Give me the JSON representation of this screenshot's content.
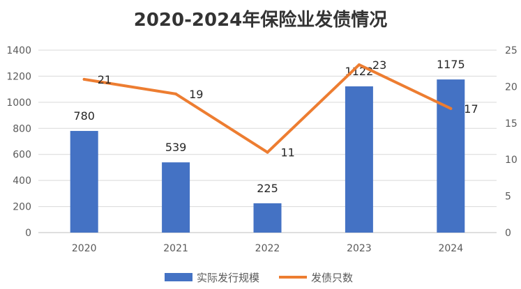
{
  "chart_data": {
    "type": "bar",
    "title": "2020-2024年保险业发债情况",
    "categories": [
      "2020",
      "2021",
      "2022",
      "2023",
      "2024"
    ],
    "series": [
      {
        "name": "实际发行规模",
        "type": "bar",
        "axis": "left",
        "values": [
          780,
          539,
          225,
          1122,
          1175
        ],
        "color": "#4472C4"
      },
      {
        "name": "发债只数",
        "type": "line",
        "axis": "right",
        "values": [
          21,
          19,
          11,
          23,
          17
        ],
        "color": "#ED7D31"
      }
    ],
    "y_left": {
      "min": 0,
      "max": 1400,
      "step": 200,
      "ticks": [
        "0",
        "200",
        "400",
        "600",
        "800",
        "1000",
        "1200",
        "1400"
      ]
    },
    "y_right": {
      "min": 0,
      "max": 25,
      "step": 5,
      "ticks": [
        "0",
        "5",
        "10",
        "15",
        "20",
        "25"
      ]
    },
    "grid": true,
    "legend_position": "bottom"
  }
}
